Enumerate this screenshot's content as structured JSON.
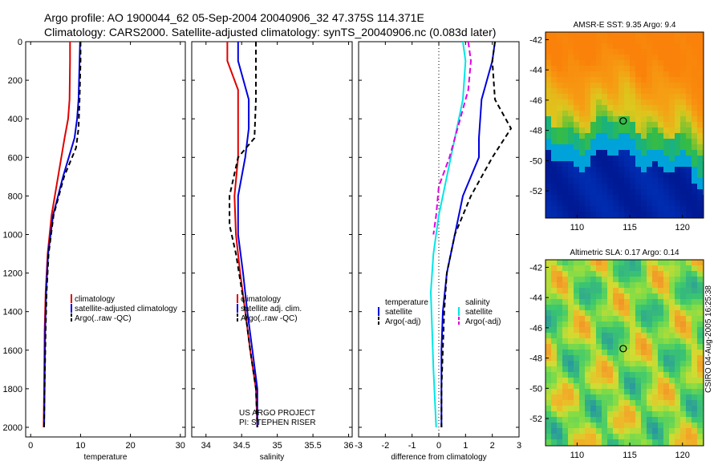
{
  "title": {
    "line1": "Argo profile: AO 1900044_62 05-Sep-2004 20040906_32 47.375S 114.371E",
    "line2": "Climatology: CARS2000. Satellite-adjusted climatology: synTS_20040906.nc (0.083d later)"
  },
  "credit": "CSIRO 04-Aug-2005 16:25:38",
  "colors": {
    "climatology": "#e00000",
    "satellite": "#0000e0",
    "argo": "#000000",
    "cyan": "#00e6e6",
    "magenta": "#e000e0"
  },
  "chart_data": [
    {
      "type": "line",
      "xlabel": "temperature",
      "xlim": [
        -1,
        31
      ],
      "ylim": [
        2050,
        0
      ],
      "xticks": [
        0,
        10,
        20,
        30
      ],
      "yticks": [
        0,
        200,
        400,
        600,
        800,
        1000,
        1200,
        1400,
        1600,
        1800,
        2000
      ],
      "series": [
        {
          "name": "climatology",
          "color": "#e00000",
          "dash": "",
          "x": [
            7.9,
            7.9,
            7.8,
            7.5,
            6.8,
            5.5,
            4.2,
            3.4,
            3.0,
            2.8,
            2.7,
            2.6
          ],
          "y": [
            0,
            100,
            300,
            400,
            500,
            700,
            900,
            1100,
            1300,
            1500,
            1800,
            2000
          ]
        },
        {
          "name": "satellite-adjusted climatology",
          "color": "#0000e0",
          "dash": "",
          "x": [
            9.9,
            9.8,
            9.6,
            9.3,
            8.8,
            6.5,
            4.5,
            3.5,
            3.1,
            2.9,
            2.8,
            2.7
          ],
          "y": [
            0,
            100,
            300,
            400,
            500,
            700,
            900,
            1100,
            1300,
            1500,
            1800,
            2000
          ]
        },
        {
          "name": "Argo(..raw -QC)",
          "color": "#000000",
          "dash": "6,4",
          "x": [
            10.0,
            10.0,
            9.8,
            9.6,
            9.1,
            6.7,
            4.6,
            3.6,
            3.2,
            3.0,
            2.8,
            2.7
          ],
          "y": [
            0,
            100,
            300,
            450,
            550,
            700,
            900,
            1100,
            1300,
            1500,
            1800,
            2000
          ]
        }
      ],
      "legend": [
        "climatology",
        "satellite-adjusted climatology",
        "Argo(..raw -QC)"
      ]
    },
    {
      "type": "line",
      "xlabel": "salinity",
      "xlim": [
        33.8,
        36.05
      ],
      "ylim": [
        2050,
        0
      ],
      "xticks": [
        34,
        34.5,
        35,
        35.5,
        36
      ],
      "series": [
        {
          "name": "climatology",
          "color": "#e00000",
          "dash": "",
          "x": [
            34.3,
            34.3,
            34.45,
            34.45,
            34.45,
            34.4,
            34.42,
            34.48,
            34.55,
            34.62,
            34.7,
            34.72
          ],
          "y": [
            0,
            100,
            250,
            400,
            600,
            800,
            1000,
            1200,
            1400,
            1600,
            1800,
            2000
          ]
        },
        {
          "name": "satellite adj. clim.",
          "color": "#0000e0",
          "dash": "",
          "x": [
            34.45,
            34.45,
            34.6,
            34.6,
            34.55,
            34.45,
            34.45,
            34.52,
            34.58,
            34.65,
            34.72,
            34.72
          ],
          "y": [
            0,
            100,
            300,
            450,
            600,
            800,
            1000,
            1200,
            1400,
            1600,
            1800,
            2000
          ]
        },
        {
          "name": "Argo(..raw -QC)",
          "color": "#000000",
          "dash": "6,4",
          "x": [
            34.7,
            34.7,
            34.7,
            34.68,
            34.45,
            34.33,
            34.33,
            34.42,
            34.55,
            34.62,
            34.7,
            34.72
          ],
          "y": [
            0,
            100,
            300,
            500,
            600,
            800,
            950,
            1100,
            1400,
            1600,
            1800,
            2000
          ]
        }
      ],
      "legend": [
        "climatology",
        "satellite adj. clim.",
        "Argo(..raw -QC)"
      ],
      "annotation": [
        "US ARGO PROJECT",
        "PI: STEPHEN RISER"
      ]
    },
    {
      "type": "line",
      "xlabel": "difference from climatology",
      "xlim": [
        -3,
        3
      ],
      "ylim": [
        2050,
        0
      ],
      "xticks": [
        -3,
        -2,
        -1,
        0,
        1,
        2,
        3
      ],
      "series": [
        {
          "name": "temperature satellite",
          "color": "#0000e0",
          "dash": "",
          "x": [
            2.1,
            2.0,
            1.6,
            1.5,
            1.5,
            0.9,
            0.6,
            0.3,
            0.15,
            0.1,
            0.1,
            0.1
          ],
          "y": [
            0,
            100,
            300,
            500,
            600,
            800,
            1000,
            1200,
            1400,
            1600,
            1800,
            2000
          ]
        },
        {
          "name": "temperature Argo(-adj)",
          "color": "#000000",
          "dash": "6,4",
          "x": [
            2.1,
            2.0,
            2.1,
            2.7,
            2.0,
            1.2,
            0.6,
            0.3,
            0.2,
            0.15,
            0.1,
            0.1
          ],
          "y": [
            0,
            100,
            300,
            450,
            600,
            800,
            1000,
            1200,
            1400,
            1600,
            1800,
            2000
          ]
        },
        {
          "name": "salinity satellite",
          "color": "#00e6e6",
          "dash": "",
          "x": [
            0.9,
            1.0,
            0.9,
            0.6,
            0.3,
            0.0,
            -0.2,
            -0.3,
            -0.25,
            -0.2,
            -0.15,
            -0.1
          ],
          "y": [
            0,
            100,
            300,
            500,
            700,
            900,
            1100,
            1300,
            1500,
            1700,
            1850,
            2000
          ]
        },
        {
          "name": "salinity Argo(-adj)",
          "color": "#e000e0",
          "dash": "7,4",
          "x": [
            1.1,
            1.2,
            1.1,
            0.8,
            0.4,
            0.0,
            -0.1,
            -0.2
          ],
          "y": [
            0,
            100,
            250,
            400,
            600,
            750,
            900,
            1000
          ]
        }
      ],
      "legend_left": [
        "temperature",
        "satellite",
        "Argo(-adj)"
      ],
      "legend_right": [
        "salinity",
        "satellite",
        "Argo(-adj)"
      ]
    },
    {
      "type": "heatmap",
      "title": "AMSR-E SST: 9.35 Argo: 9.4",
      "xlim": [
        107,
        122
      ],
      "ylim": [
        -53.8,
        -41.5
      ],
      "xticks": [
        110,
        115,
        120
      ],
      "yticks": [
        -42,
        -44,
        -46,
        -48,
        -50,
        -52
      ],
      "marker": {
        "lon": 114.371,
        "lat": -47.375
      }
    },
    {
      "type": "heatmap",
      "title": "Altimetric SLA: 0.17 Argo: 0.14",
      "xlim": [
        107,
        122
      ],
      "ylim": [
        -53.8,
        -41.5
      ],
      "xticks": [
        110,
        115,
        120
      ],
      "yticks": [
        -42,
        -44,
        -46,
        -48,
        -50,
        -52
      ],
      "marker": {
        "lon": 114.371,
        "lat": -47.375
      }
    }
  ]
}
